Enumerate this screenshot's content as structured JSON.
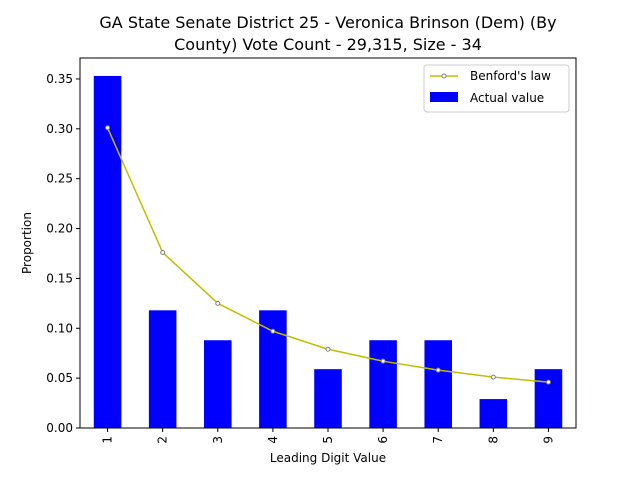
{
  "chart_data": {
    "type": "bar",
    "title_lines": [
      "GA State Senate District 25 - Veronica Brinson (Dem) (By",
      "County) Vote Count - 29,315, Size - 34"
    ],
    "xlabel": "Leading Digit Value",
    "ylabel": "Proportion",
    "categories": [
      "1",
      "2",
      "3",
      "4",
      "5",
      "6",
      "7",
      "8",
      "9"
    ],
    "series": [
      {
        "name": "Actual value",
        "kind": "bar",
        "color": "#0000ff",
        "values": [
          0.353,
          0.118,
          0.088,
          0.118,
          0.059,
          0.088,
          0.088,
          0.029,
          0.059
        ]
      },
      {
        "name": "Benford's law",
        "kind": "line",
        "color": "#bfbf00",
        "marker_color": "#808080",
        "values": [
          0.301,
          0.176,
          0.125,
          0.097,
          0.079,
          0.067,
          0.058,
          0.051,
          0.046
        ]
      }
    ],
    "yticks": [
      "0.00",
      "0.05",
      "0.10",
      "0.15",
      "0.20",
      "0.25",
      "0.30",
      "0.35"
    ],
    "ylim": [
      0,
      0.371
    ],
    "grid": false,
    "legend_position": "top-right"
  }
}
